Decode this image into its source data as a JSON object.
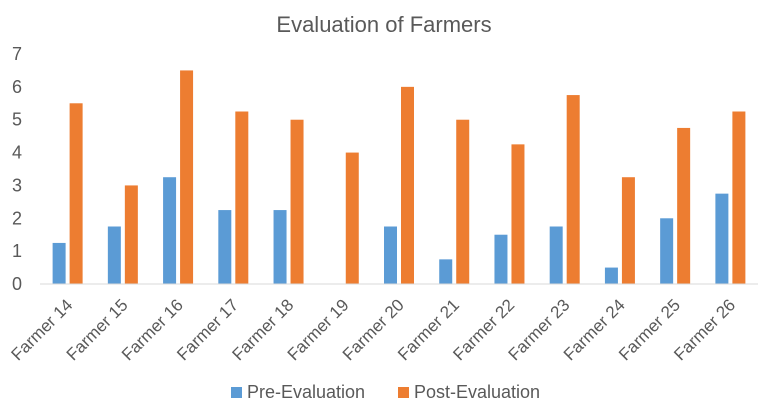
{
  "chart_data": {
    "type": "bar",
    "title": "Evaluation of Farmers",
    "xlabel": "",
    "ylabel": "",
    "ylim": [
      0,
      7
    ],
    "yticks": [
      0,
      1,
      2,
      3,
      4,
      5,
      6,
      7
    ],
    "grid": false,
    "legend_position": "bottom",
    "categories": [
      "Farmer 14",
      "Farmer 15",
      "Farmer 16",
      "Farmer 17",
      "Farmer 18",
      "Farmer 19",
      "Farmer 20",
      "Farmer 21",
      "Farmer 22",
      "Farmer 23",
      "Farmer 24",
      "Farmer 25",
      "Farmer 26"
    ],
    "series": [
      {
        "name": "Pre-Evaluation",
        "color": "#5B9BD5",
        "values": [
          1.25,
          1.75,
          3.25,
          2.25,
          2.25,
          0,
          1.75,
          0.75,
          1.5,
          1.75,
          0.5,
          2.0,
          2.75
        ]
      },
      {
        "name": "Post-Evaluation",
        "color": "#ED7D31",
        "values": [
          5.5,
          3.0,
          6.5,
          5.25,
          5.0,
          4.0,
          6.0,
          5.0,
          4.25,
          5.75,
          3.25,
          4.75,
          5.25
        ]
      }
    ]
  }
}
